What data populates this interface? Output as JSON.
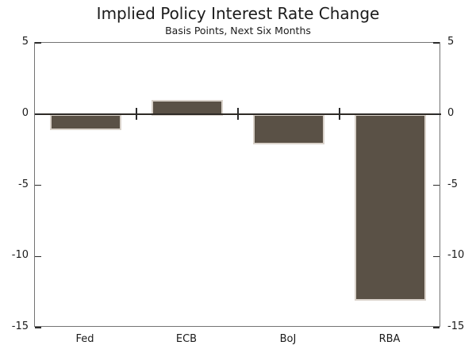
{
  "chart": {
    "title": "Implied Policy Interest Rate Change",
    "subtitle": "Basis Points, Next Six Months"
  },
  "chart_data": {
    "type": "bar",
    "title": "Implied Policy Interest Rate Change",
    "subtitle": "Basis Points, Next Six Months",
    "categories": [
      "Fed",
      "ECB",
      "BoJ",
      "RBA"
    ],
    "values": [
      -1,
      1,
      -2,
      -13
    ],
    "xlabel": "",
    "ylabel": "",
    "ylim": [
      -15,
      5
    ],
    "yticks": [
      5,
      0,
      -5,
      -10,
      -15
    ],
    "axis_labels_both_sides": true,
    "grid": false,
    "legend": false,
    "colors": {
      "bar_fill": "#5a5146",
      "bar_border": "#d9d2ca",
      "frame": "#737373",
      "zero_line": "#2e2a26",
      "tick": "#2b2b2b",
      "text": "#1b1b1b",
      "background": "#ffffff"
    }
  }
}
